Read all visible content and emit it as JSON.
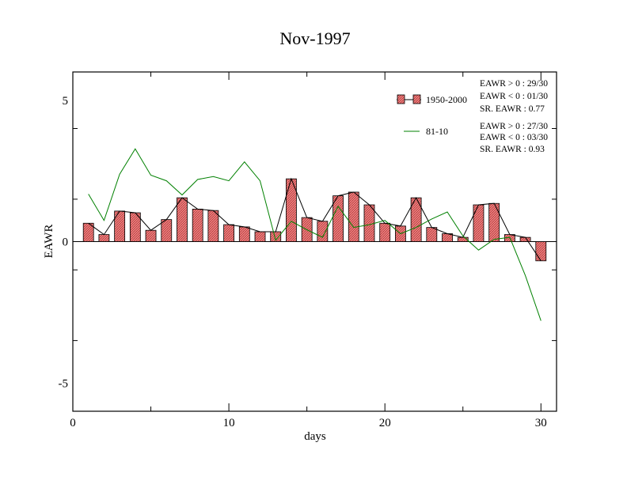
{
  "chart_data": {
    "type": "bar",
    "title": "Nov-1997",
    "xlabel": "days",
    "ylabel": "EAWR",
    "xlim": [
      0,
      31
    ],
    "ylim": [
      -6,
      6
    ],
    "xticks": [
      0,
      10,
      20,
      30
    ],
    "xtick_labels": [
      "0",
      "10",
      "20",
      "30"
    ],
    "yticks": [
      -5,
      0,
      5
    ],
    "ytick_labels": [
      "-5",
      "0",
      "5"
    ],
    "grid": false,
    "legend_position": "top-right",
    "series": [
      {
        "name": "1950-2000",
        "kind": "bar-with-line",
        "bar_color": "#f08080",
        "line_color": "#000000",
        "x": [
          1,
          2,
          3,
          4,
          5,
          6,
          7,
          8,
          9,
          10,
          11,
          12,
          13,
          14,
          15,
          16,
          17,
          18,
          19,
          20,
          21,
          22,
          23,
          24,
          25,
          26,
          27,
          28,
          29,
          30
        ],
        "values": [
          0.65,
          0.25,
          1.08,
          1.02,
          0.4,
          0.78,
          1.55,
          1.15,
          1.1,
          0.6,
          0.52,
          0.35,
          0.35,
          2.22,
          0.85,
          0.72,
          1.62,
          1.75,
          1.3,
          0.65,
          0.55,
          1.55,
          0.5,
          0.28,
          0.15,
          1.3,
          1.35,
          0.25,
          0.15,
          -0.68
        ]
      },
      {
        "name": "81-10",
        "kind": "line",
        "line_color": "#008000",
        "x": [
          1,
          2,
          3,
          4,
          5,
          6,
          7,
          8,
          9,
          10,
          11,
          12,
          13,
          14,
          15,
          16,
          17,
          18,
          19,
          20,
          21,
          22,
          23,
          24,
          25,
          26,
          27,
          28,
          29,
          30
        ],
        "values": [
          1.68,
          0.75,
          2.38,
          3.28,
          2.35,
          2.15,
          1.65,
          2.2,
          2.3,
          2.15,
          2.82,
          2.15,
          0.05,
          0.72,
          0.42,
          0.15,
          1.25,
          0.5,
          0.6,
          0.75,
          0.28,
          0.5,
          0.8,
          1.05,
          0.2,
          -0.3,
          0.08,
          0.15,
          -1.2,
          -2.8
        ]
      }
    ],
    "annotations": {
      "group1": [
        "EAWR > 0 : 29/30",
        "EAWR < 0 : 01/30",
        "SR. EAWR :  0.77"
      ],
      "group2": [
        "EAWR > 0 : 27/30",
        "EAWR < 0 : 03/30",
        "SR. EAWR :  0.93"
      ]
    }
  }
}
